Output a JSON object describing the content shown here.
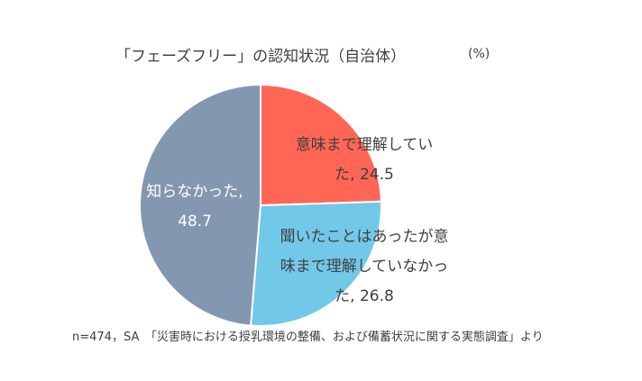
{
  "chart_data": {
    "type": "pie",
    "title": "「フェーズフリー」の認知状況（自治体）",
    "unit": "(%)",
    "slices": [
      {
        "label": "意味まで理解していた",
        "value": 24.5,
        "color": "#ff6655",
        "label_lines": [
          "意味まで理解してい",
          "た, 24.5"
        ]
      },
      {
        "label": "聞いたことはあったが意味まで理解していなかった",
        "value": 26.8,
        "color": "#72c8e8",
        "label_lines": [
          "聞いたことはあったが意",
          "味まで理解していなかっ",
          "た, 26.8"
        ]
      },
      {
        "label": "知らなかった",
        "value": 48.7,
        "color": "#8497b0",
        "label_lines": [
          "知らなかった,",
          "48.7"
        ]
      }
    ],
    "legend": "none",
    "note": "n=474，SA　「災害時における授乳環境の整備、および備蓄状況に関する実態調査」より"
  }
}
